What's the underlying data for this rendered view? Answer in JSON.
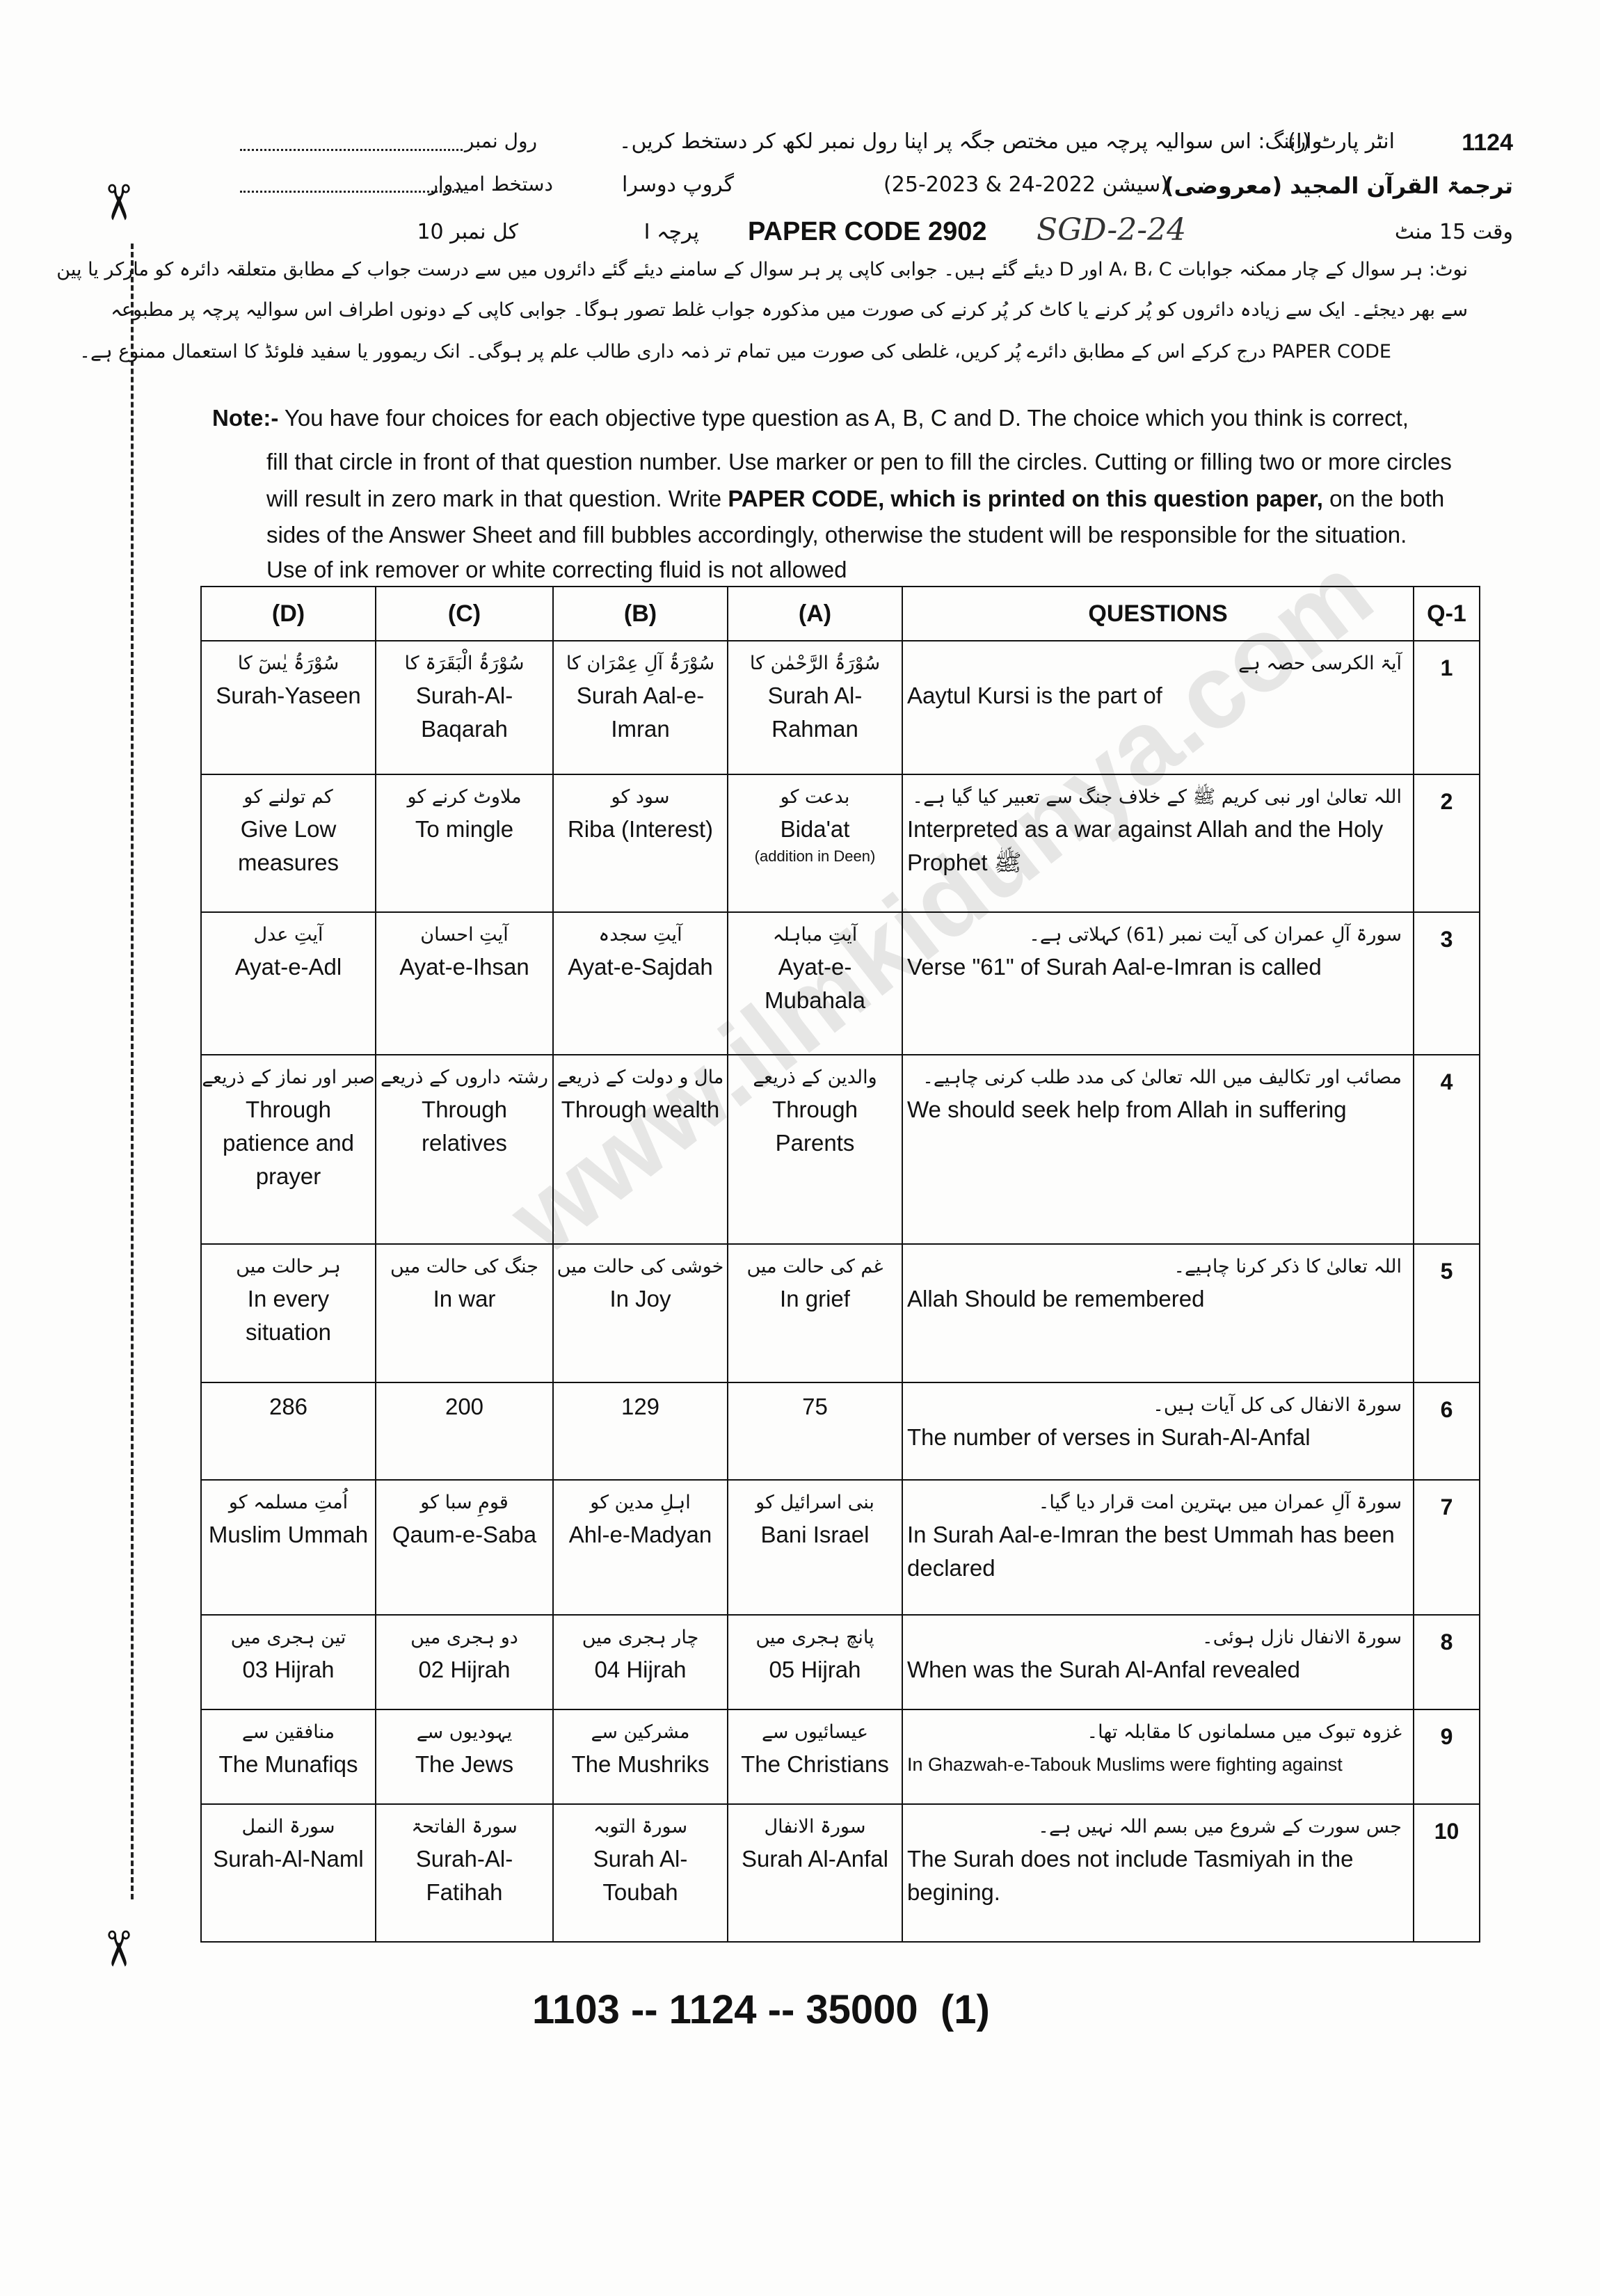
{
  "header": {
    "code": "1124",
    "part": "انٹر پارٹ (I)",
    "warning": "وارننگ: اس سوالیہ پرچہ میں مختص جگہ پر اپنا رول نمبر لکھ کر دستخط کریں۔",
    "roll_no": "رول نمبر",
    "subject": "ترجمۃ القرآن المجید (معروضی)",
    "session": "(سیشن 2022-24 & 2023-25)",
    "group": "گروپ دوسرا",
    "signature": "دستخط امیدوار",
    "time": "وقت 15 منٹ",
    "paper_code": "PAPER CODE 2902",
    "handwritten": "SGD-2-24",
    "paper": "پرچہ I",
    "marks": "کل نمبر 10"
  },
  "note_urdu": [
    "نوٹ: ہر سوال کے چار ممکنہ جوابات A، B، C اور D دیئے گئے ہیں۔ جوابی کاپی پر ہر سوال کے سامنے دیئے گئے دائروں میں سے درست جواب کے مطابق متعلقہ دائرہ کو مارکر یا پین",
    "سے بھر دیجئے۔ ایک سے زیادہ دائروں کو پُر کرنے یا کاٹ کر پُر کرنے کی صورت میں مذکورہ جواب غلط تصور ہوگا۔ جوابی کاپی کے دونوں اطراف اس سوالیہ پرچہ پر مطبوعہ",
    "PAPER CODE درج کرکے اس کے مطابق دائرے پُر کریں، غلطی کی صورت میں تمام تر ذمہ داری طالب علم پر ہوگی۔ انک ریموور یا سفید فلوئڈ کا استعمال ممنوع ہے۔"
  ],
  "note_english": {
    "label": "Note:-",
    "line1": "You have four choices for each objective type question as A, B, C and D.  The choice which you think is correct,",
    "line2": "fill that circle in front of that question number.  Use marker or pen to fill the circles.  Cutting or filling two or more circles",
    "line3_before": "will result in zero mark in that question.  Write",
    "line3_bold": "PAPER CODE, which is printed on this question paper,",
    "line3_after": "on the  both",
    "line4": "sides of the  Answer  Sheet and fill bubbles accordingly,  otherwise  the student  will be responsible for  the situation.",
    "line5": "Use  of ink remover or white correcting  fluid is not allowed"
  },
  "table": {
    "headers": [
      "(D)",
      "(C)",
      "(B)",
      "(A)",
      "QUESTIONS",
      "Q-1"
    ],
    "rows": [
      {
        "number": "1",
        "question_ur": "آیۃ الکرسی حصہ ہے",
        "question_en": "Aaytul Kursi is the part of",
        "options": [
          {
            "ur": "سُوْرَۃُ یٰسٓ کا",
            "en": "Surah-Yaseen"
          },
          {
            "ur": "سُوْرَۃُ الْبَقَرَۃ کا",
            "en": "Surah-Al-Baqarah"
          },
          {
            "ur": "سُوْرَۃُ آلِ عِمْرَان کا",
            "en": "Surah Aal-e-Imran"
          },
          {
            "ur": "سُوْرَۃُ الرَّحْمٰن کا",
            "en": "Surah Al-Rahman"
          }
        ]
      },
      {
        "number": "2",
        "question_ur": "اللہ تعالیٰ اور نبی کریم ﷺ کے خلاف جنگ سے تعبیر کیا گیا ہے۔",
        "question_en": "Interpreted as a war against Allah and the Holy Prophet ﷺ",
        "options": [
          {
            "ur": "کم تولنے کو",
            "en": "Give Low measures"
          },
          {
            "ur": "ملاوٹ کرنے کو",
            "en": "To mingle"
          },
          {
            "ur": "سود کو",
            "en": "Riba (Interest)"
          },
          {
            "ur": "بدعت کو",
            "en": "Bida'at",
            "note": "(addition in Deen)"
          }
        ]
      },
      {
        "number": "3",
        "question_ur": "سورۃ آلِ عمران کی آیت نمبر (61) کہلاتی ہے۔",
        "question_en": "Verse \"61\" of Surah Aal-e-Imran is called",
        "options": [
          {
            "ur": "آیتِ عدل",
            "en": "Ayat-e-Adl"
          },
          {
            "ur": "آیتِ احسان",
            "en": "Ayat-e-Ihsan"
          },
          {
            "ur": "آیتِ سجدہ",
            "en": "Ayat-e-Sajdah"
          },
          {
            "ur": "آیتِ مباہلہ",
            "en": "Ayat-e-Mubahala"
          }
        ]
      },
      {
        "number": "4",
        "question_ur": "مصائب اور تکالیف میں اللہ تعالیٰ کی مدد طلب کرنی چاہیے۔",
        "question_en": "We should seek help from Allah in suffering",
        "options": [
          {
            "ur": "صبر اور نماز کے ذریعے",
            "en": "Through patience and prayer"
          },
          {
            "ur": "رشتہ داروں کے ذریعے",
            "en": "Through relatives"
          },
          {
            "ur": "مال و دولت کے ذریعے",
            "en": "Through wealth"
          },
          {
            "ur": "والدین کے ذریعے",
            "en": "Through Parents"
          }
        ]
      },
      {
        "number": "5",
        "question_ur": "اللہ تعالیٰ کا ذکر کرنا چاہیے۔",
        "question_en": "Allah Should be remembered",
        "options": [
          {
            "ur": "ہر حالت میں",
            "en": "In every situation"
          },
          {
            "ur": "جنگ کی حالت میں",
            "en": "In war"
          },
          {
            "ur": "خوشی کی حالت میں",
            "en": "In Joy"
          },
          {
            "ur": "غم کی حالت میں",
            "en": "In grief"
          }
        ]
      },
      {
        "number": "6",
        "question_ur": "سورۃ الانفال کی کل آیات ہیں۔",
        "question_en": "The number of verses in Surah-Al-Anfal",
        "options": [
          {
            "en": "286"
          },
          {
            "en": "200"
          },
          {
            "en": "129"
          },
          {
            "en": "75"
          }
        ]
      },
      {
        "number": "7",
        "question_ur": "سورۃ آلِ عمران میں بہترین امت قرار دیا گیا۔",
        "question_en": "In Surah Aal-e-Imran the best Ummah has been declared",
        "options": [
          {
            "ur": "اُمتِ مسلمہ کو",
            "en": "Muslim Ummah"
          },
          {
            "ur": "قومِ سبا کو",
            "en": "Qaum-e-Saba"
          },
          {
            "ur": "اہلِ مدین کو",
            "en": "Ahl-e-Madyan"
          },
          {
            "ur": "بنی اسرائیل کو",
            "en": "Bani Israel"
          }
        ]
      },
      {
        "number": "8",
        "question_ur": "سورۃ الانفال نازل ہوئی۔",
        "question_en": "When was the Surah Al-Anfal revealed",
        "options": [
          {
            "ur": "تین ہجری میں",
            "en": "03 Hijrah"
          },
          {
            "ur": "دو ہجری میں",
            "en": "02 Hijrah"
          },
          {
            "ur": "چار ہجری میں",
            "en": "04 Hijrah"
          },
          {
            "ur": "پانچ ہجری میں",
            "en": "05 Hijrah"
          }
        ]
      },
      {
        "number": "9",
        "question_ur": "غزوہ تبوک میں مسلمانوں کا مقابلہ تھا۔",
        "question_en": "In Ghazwah-e-Tabouk Muslims were fighting against",
        "options": [
          {
            "ur": "منافقین سے",
            "en": "The Munafiqs"
          },
          {
            "ur": "یہودیوں سے",
            "en": "The Jews"
          },
          {
            "ur": "مشرکین سے",
            "en": "The Mushriks"
          },
          {
            "ur": "عیسائیوں سے",
            "en": "The Christians"
          }
        ]
      },
      {
        "number": "10",
        "question_ur": "جس سورت کے شروع میں بسم اللہ نہیں ہے۔",
        "question_en": "The Surah does not include Tasmiyah in the begining.",
        "options": [
          {
            "ur": "سورۃ النمل",
            "en": "Surah-Al-Naml"
          },
          {
            "ur": "سورۃ الفاتحۃ",
            "en": "Surah-Al-Fatihah"
          },
          {
            "ur": "سورۃ التوبہ",
            "en": "Surah Al-Toubah"
          },
          {
            "ur": "سورۃ الانفال",
            "en": "Surah Al-Anfal"
          }
        ]
      }
    ]
  },
  "footer": "1103 -- 1124 -- 35000  (1)",
  "watermark": "www.ilmkidunya.com"
}
